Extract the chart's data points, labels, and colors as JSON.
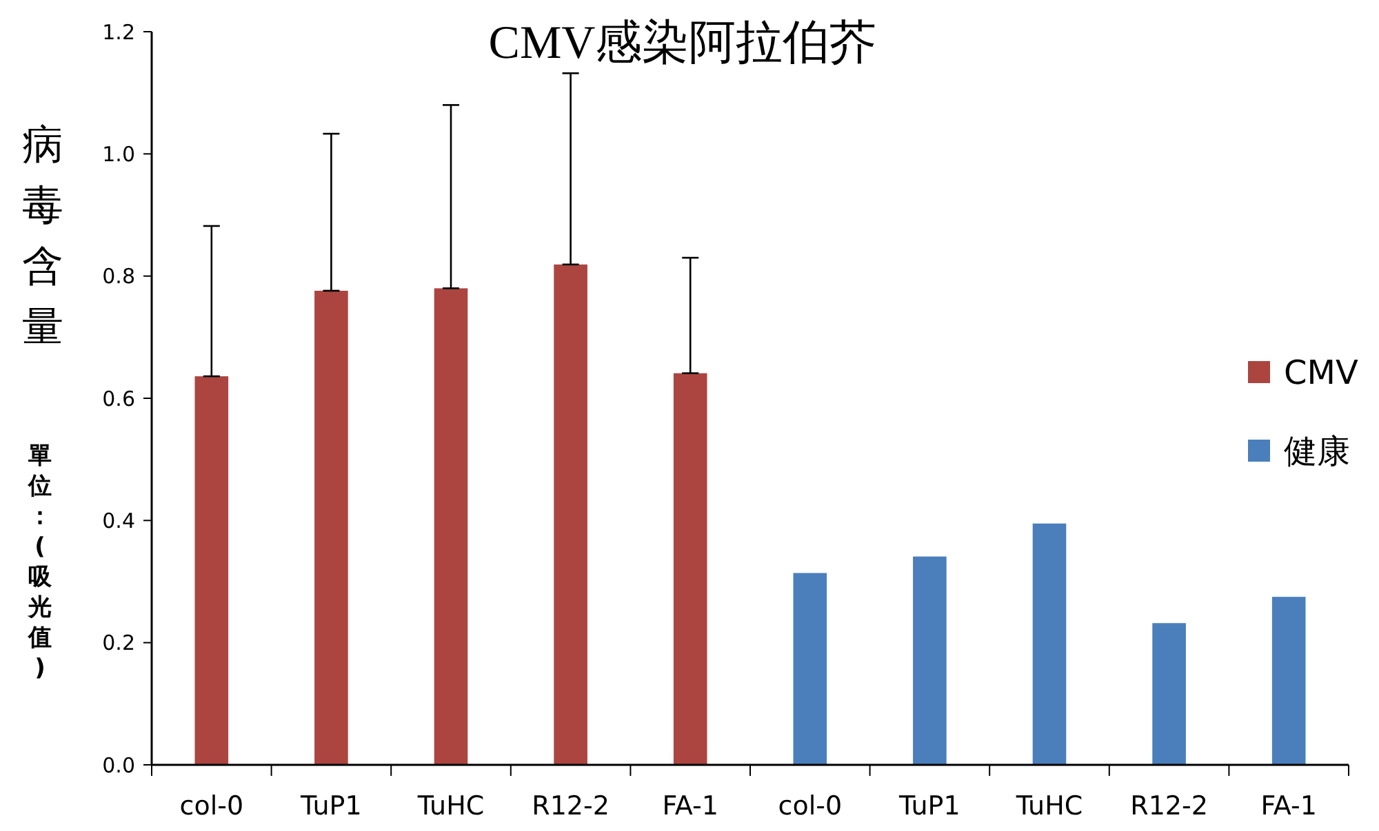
{
  "chart_data": {
    "type": "bar",
    "title": "CMV感染阿拉伯芥",
    "ylabel": "病毒含量",
    "annotations": [
      "單位：(吸光值)"
    ],
    "categories": [
      "col-0",
      "TuP1",
      "TuHC",
      "R12-2",
      "FA-1",
      "col-0",
      "TuP1",
      "TuHC",
      "R12-2",
      "FA-1"
    ],
    "series": [
      {
        "name": "CMV",
        "color": "#ac4540",
        "values": [
          0.636,
          0.776,
          0.78,
          0.819,
          0.641,
          null,
          null,
          null,
          null,
          null
        ],
        "errors": [
          [
            0.636,
            0.882
          ],
          [
            0.776,
            1.033
          ],
          [
            0.78,
            1.08
          ],
          [
            0.819,
            1.132
          ],
          [
            0.641,
            0.83
          ],
          null,
          null,
          null,
          null,
          null
        ]
      },
      {
        "name": "健康",
        "color": "#4a7fbb",
        "values": [
          null,
          null,
          null,
          null,
          null,
          0.314,
          0.341,
          0.395,
          0.232,
          0.275
        ]
      }
    ],
    "ylim": [
      0,
      1.2
    ],
    "yticks": [
      {
        "value": 0,
        "label": "0.0"
      },
      0.2,
      0.4,
      0.6,
      0.8,
      {
        "value": 1,
        "label": "1.0"
      },
      1.2
    ],
    "legend": "right"
  }
}
